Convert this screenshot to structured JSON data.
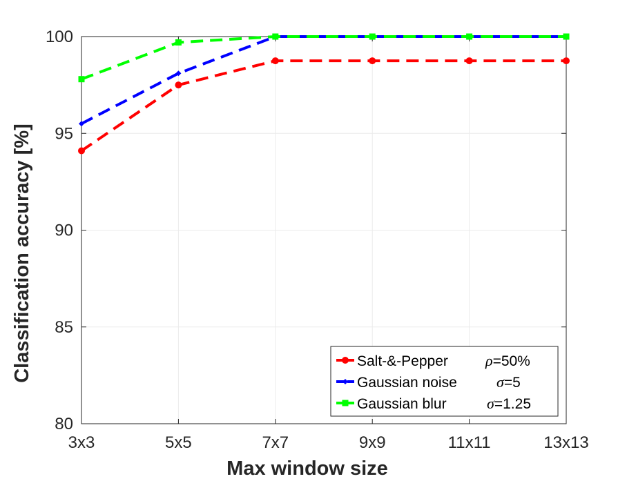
{
  "chart_data": {
    "type": "line",
    "xlabel": "Max window size",
    "ylabel": "Classification accuracy [%]",
    "categories": [
      "3x3",
      "5x5",
      "7x7",
      "9x9",
      "11x11",
      "13x13"
    ],
    "ylim": [
      80,
      100
    ],
    "yticks": [
      "80",
      "85",
      "90",
      "95",
      "100"
    ],
    "grid": true,
    "legend_position": "bottom-right",
    "series": [
      {
        "name": "Salt-&-Pepper",
        "param_symbol": "ρ",
        "param_value": "=50%",
        "color": "#ff0000",
        "marker": "circle",
        "values": [
          94.1,
          97.5,
          98.75,
          98.75,
          98.75,
          98.75
        ]
      },
      {
        "name": "Gaussian noise",
        "param_symbol": "σ",
        "param_value": "=5",
        "color": "#0000ff",
        "marker": "diamond",
        "values": [
          95.5,
          98.1,
          100,
          100,
          100,
          100
        ]
      },
      {
        "name": "Gaussian blur",
        "param_symbol": "σ",
        "param_value": "=1.25",
        "color": "#00ff00",
        "marker": "square",
        "values": [
          97.8,
          99.7,
          100,
          100,
          100,
          100
        ]
      }
    ]
  }
}
